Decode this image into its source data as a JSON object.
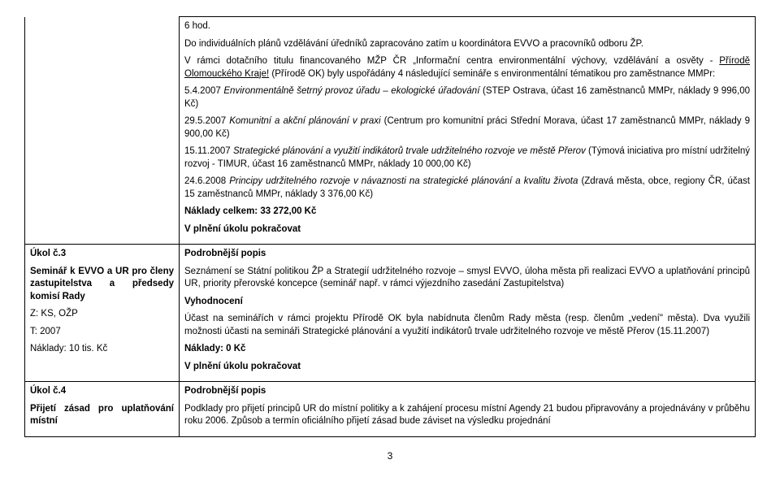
{
  "row1": {
    "p1": "6 hod.",
    "p2": "Do individuálních plánů vzdělávání úředníků zapracováno zatím u koordinátora EVVO a pracovníků odboru ŽP.",
    "p3a": "V rámci dotačního titulu financovaného MŽP ČR „Informační centra environmentální výchovy, vzdělávání a osvěty - ",
    "p3b": "Přírodě Olomouckého Kraje!",
    "p3c": " (Přírodě OK) byly uspořádány 4 následující semináře s environmentální tématikou pro zaměstnance MMPr:",
    "p4a": "5.4.2007 ",
    "p4b": "Environmentálně šetrný provoz úřadu – ekologické úřadování",
    "p4c": " (STEP Ostrava, účast 16 zaměstnanců MMPr, náklady 9 996,00 Kč)",
    "p5a": "29.5.2007 ",
    "p5b": "Komunitní a akční plánování v praxi",
    "p5c": " (Centrum pro komunitní práci Střední Morava, účast 17 zaměstnanců MMPr, náklady 9 900,00 Kč)",
    "p6a": "15.11.2007 ",
    "p6b": "Strategické plánování a využití indikátorů trvale udržitelného rozvoje ve městě Přerov",
    "p6c": " (Týmová iniciativa pro místní udržitelný rozvoj - TIMUR, účast 16 zaměstnanců MMPr, náklady 10 000,00 Kč)",
    "p7a": "24.6.2008 ",
    "p7b": "Principy udržitelného rozvoje v návaznosti na strategické plánování a kvalitu života",
    "p7c": " (Zdravá města, obce, regiony ČR, účast 15 zaměstnanců MMPr, náklady 3 376,00 Kč)",
    "p8": "Náklady celkem: 33 272,00 Kč",
    "p9": "V plnění úkolu pokračovat"
  },
  "row2": {
    "left": {
      "title": "Úkol č.3",
      "l1": "Seminář k EVVO a UR pro členy zastupitelstva a předsedy komisí Rady",
      "l2": "Z: KS, OŽP",
      "l3": "T: 2007",
      "l4": "Náklady: 10 tis. Kč"
    },
    "right": {
      "h1": "Podrobnější popis",
      "p1": "Seznámení se Státní politikou ŽP a Strategií udržitelného rozvoje – smysl EVVO, úloha města při realizaci EVVO a uplatňování principů UR, priority přerovské koncepce (seminář např. v rámci výjezdního zasedání Zastupitelstva)",
      "h2": "Vyhodnocení",
      "p2": "Účast na seminářích v rámci projektu Přírodě OK byla nabídnuta členům Rady města (resp. členům „vedení\" města). Dva využili možnosti účasti na semináři Strategické plánování a využití indikátorů trvale udržitelného rozvoje ve městě Přerov (15.11.2007)",
      "p3": "Náklady: 0 Kč",
      "p4": "V plnění úkolu pokračovat"
    }
  },
  "row3": {
    "left": {
      "title": "Úkol č.4",
      "l1": "Přijetí zásad pro uplatňování místní"
    },
    "right": {
      "h1": "Podrobnější popis",
      "p1": "Podklady pro přijetí principů UR do místní politiky a k zahájení procesu místní Agendy 21 budou připravovány a projednávány v průběhu roku 2006. Způsob a termín oficiálního přijetí zásad bude záviset na výsledku projednání"
    }
  },
  "pageNumber": "3"
}
